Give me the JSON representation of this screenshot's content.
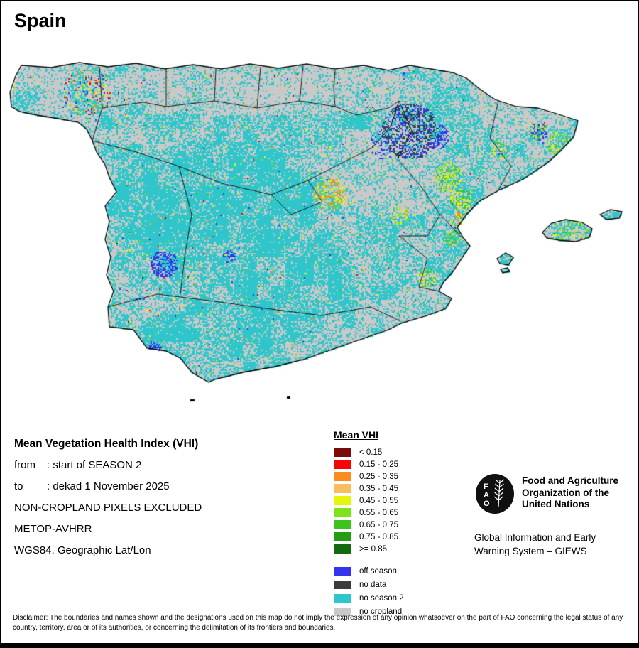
{
  "page": {
    "title": "Spain"
  },
  "info": {
    "heading": "Mean Vegetation Health Index (VHI)",
    "rows": [
      {
        "label": "from",
        "value": ": start of SEASON 2"
      },
      {
        "label": "to",
        "value": ": dekad 1 November 2025"
      }
    ],
    "notes": [
      "NON-CROPLAND PIXELS EXCLUDED",
      "METOP-AVHRR",
      "WGS84, Geographic Lat/Lon"
    ]
  },
  "legend": {
    "title": "Mean VHI",
    "classes": [
      {
        "label": "< 0.15",
        "color": "#7a0b0b"
      },
      {
        "label": "0.15 - 0.25",
        "color": "#f50505"
      },
      {
        "label": "0.25 - 0.35",
        "color": "#fb8c1e"
      },
      {
        "label": "0.35 - 0.45",
        "color": "#f9bd60"
      },
      {
        "label": "0.45 - 0.55",
        "color": "#e4f70a"
      },
      {
        "label": "0.55 - 0.65",
        "color": "#7de418"
      },
      {
        "label": "0.65 - 0.75",
        "color": "#3cc41c"
      },
      {
        "label": "0.75 - 0.85",
        "color": "#219e13"
      },
      {
        "label": ">= 0.85",
        "color": "#14690c"
      }
    ],
    "extra": [
      {
        "label": "off season",
        "color": "#3434ee"
      },
      {
        "label": "no data",
        "color": "#3b3b3b"
      },
      {
        "label": "no season 2",
        "color": "#2ec6ca"
      },
      {
        "label": "no cropland",
        "color": "#c9c9c9"
      }
    ]
  },
  "org": {
    "logo_letters": [
      "F",
      "A",
      "O"
    ],
    "name_lines": [
      "Food and Agriculture",
      "Organization of the",
      "United Nations"
    ],
    "sub_lines": [
      "Global Information and Early",
      "Warning System – GIEWS"
    ]
  },
  "disclaimer": "Disclaimer: The boundaries and names shown and the designations used on this map do not imply the expression of any opinion whatsoever on the part of FAO concerning the legal status of any country, territory, area or of its authorities, or concerning the delimitation of its frontiers and boundaries."
}
